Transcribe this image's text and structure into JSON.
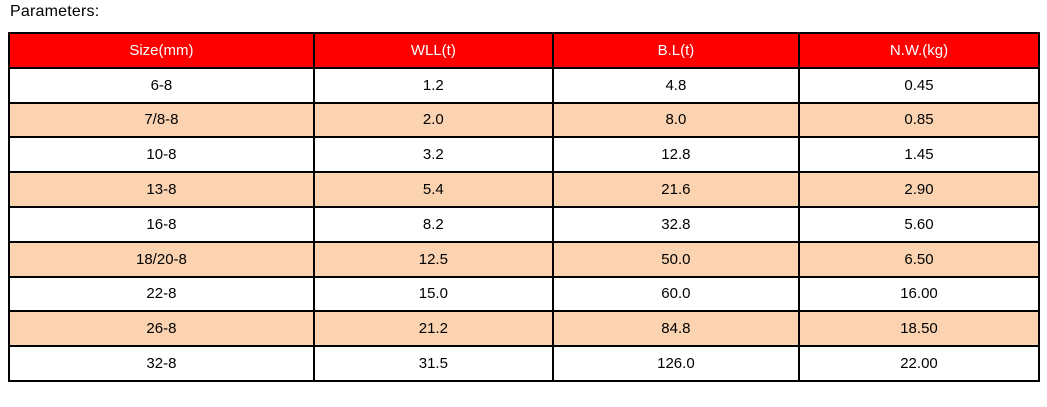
{
  "page": {
    "title": "Parameters:"
  },
  "colors": {
    "header_bg": "#fe0000",
    "header_text": "#ffffff",
    "row_bg": "#ffffff",
    "row_alt_bg": "#fbd3b1",
    "border": "#000000"
  },
  "table": {
    "columns": [
      "Size(mm)",
      "WLL(t)",
      "B.L(t)",
      "N.W.(kg)"
    ],
    "rows": [
      [
        "6-8",
        "1.2",
        "4.8",
        "0.45"
      ],
      [
        "7/8-8",
        "2.0",
        "8.0",
        "0.85"
      ],
      [
        "10-8",
        "3.2",
        "12.8",
        "1.45"
      ],
      [
        "13-8",
        "5.4",
        "21.6",
        "2.90"
      ],
      [
        "16-8",
        "8.2",
        "32.8",
        "5.60"
      ],
      [
        "18/20-8",
        "12.5",
        "50.0",
        "6.50"
      ],
      [
        "22-8",
        "15.0",
        "60.0",
        "16.00"
      ],
      [
        "26-8",
        "21.2",
        "84.8",
        "18.50"
      ],
      [
        "32-8",
        "31.5",
        "126.0",
        "22.00"
      ]
    ]
  }
}
